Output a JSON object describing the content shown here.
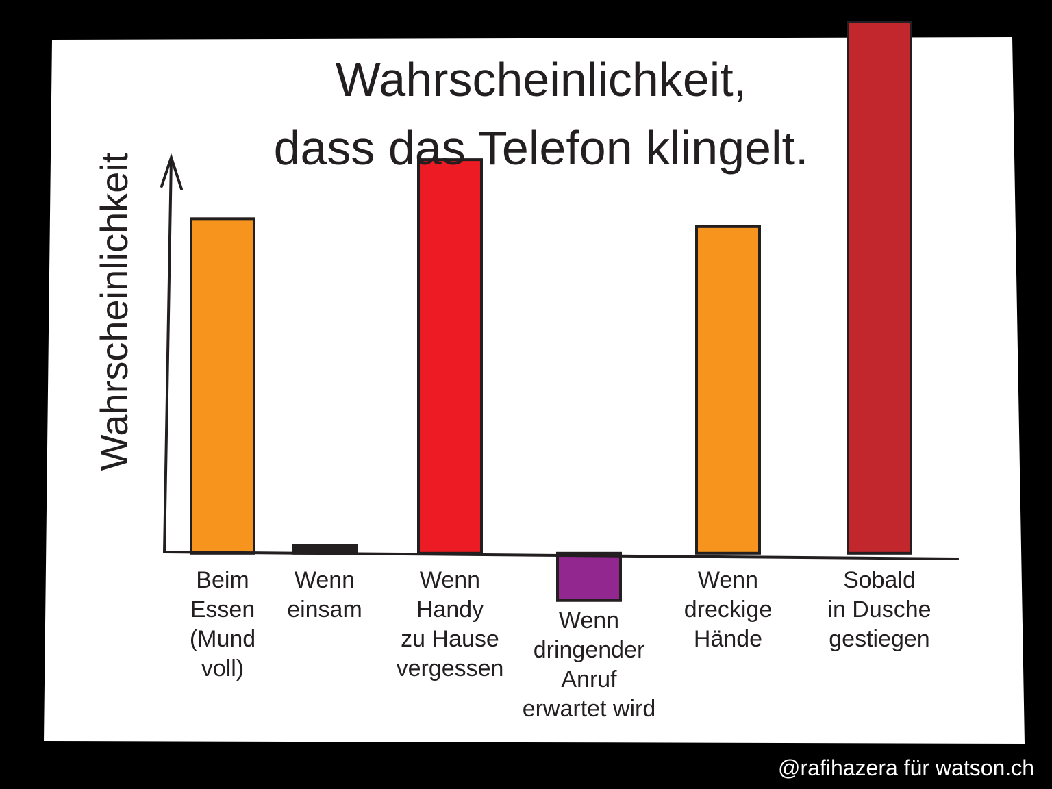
{
  "chart_data": {
    "type": "bar",
    "title": "Wahrscheinlichkeit,\ndass das Telefon klingelt.",
    "y_label": "Wahrscheinlichkeit",
    "credit": "@rafihazera für watson.ch",
    "categories": [
      "Beim\nEssen\n(Mund\nvoll)",
      "Wenn\neinsam",
      "Wenn\nHandy\nzu Hause\nvergessen",
      "Wenn\ndringender\nAnruf\nerwartet wird",
      "Wenn\ndreckige\nHände",
      "Sobald\nin Dusche\ngestiegen"
    ],
    "values": [
      85,
      2,
      100,
      -12,
      83,
      135
    ],
    "colors": [
      "#f7941d",
      "#231f20",
      "#ed1c24",
      "#92278f",
      "#f7941d",
      "#c1272d"
    ],
    "ylim": [
      -15,
      135
    ]
  }
}
